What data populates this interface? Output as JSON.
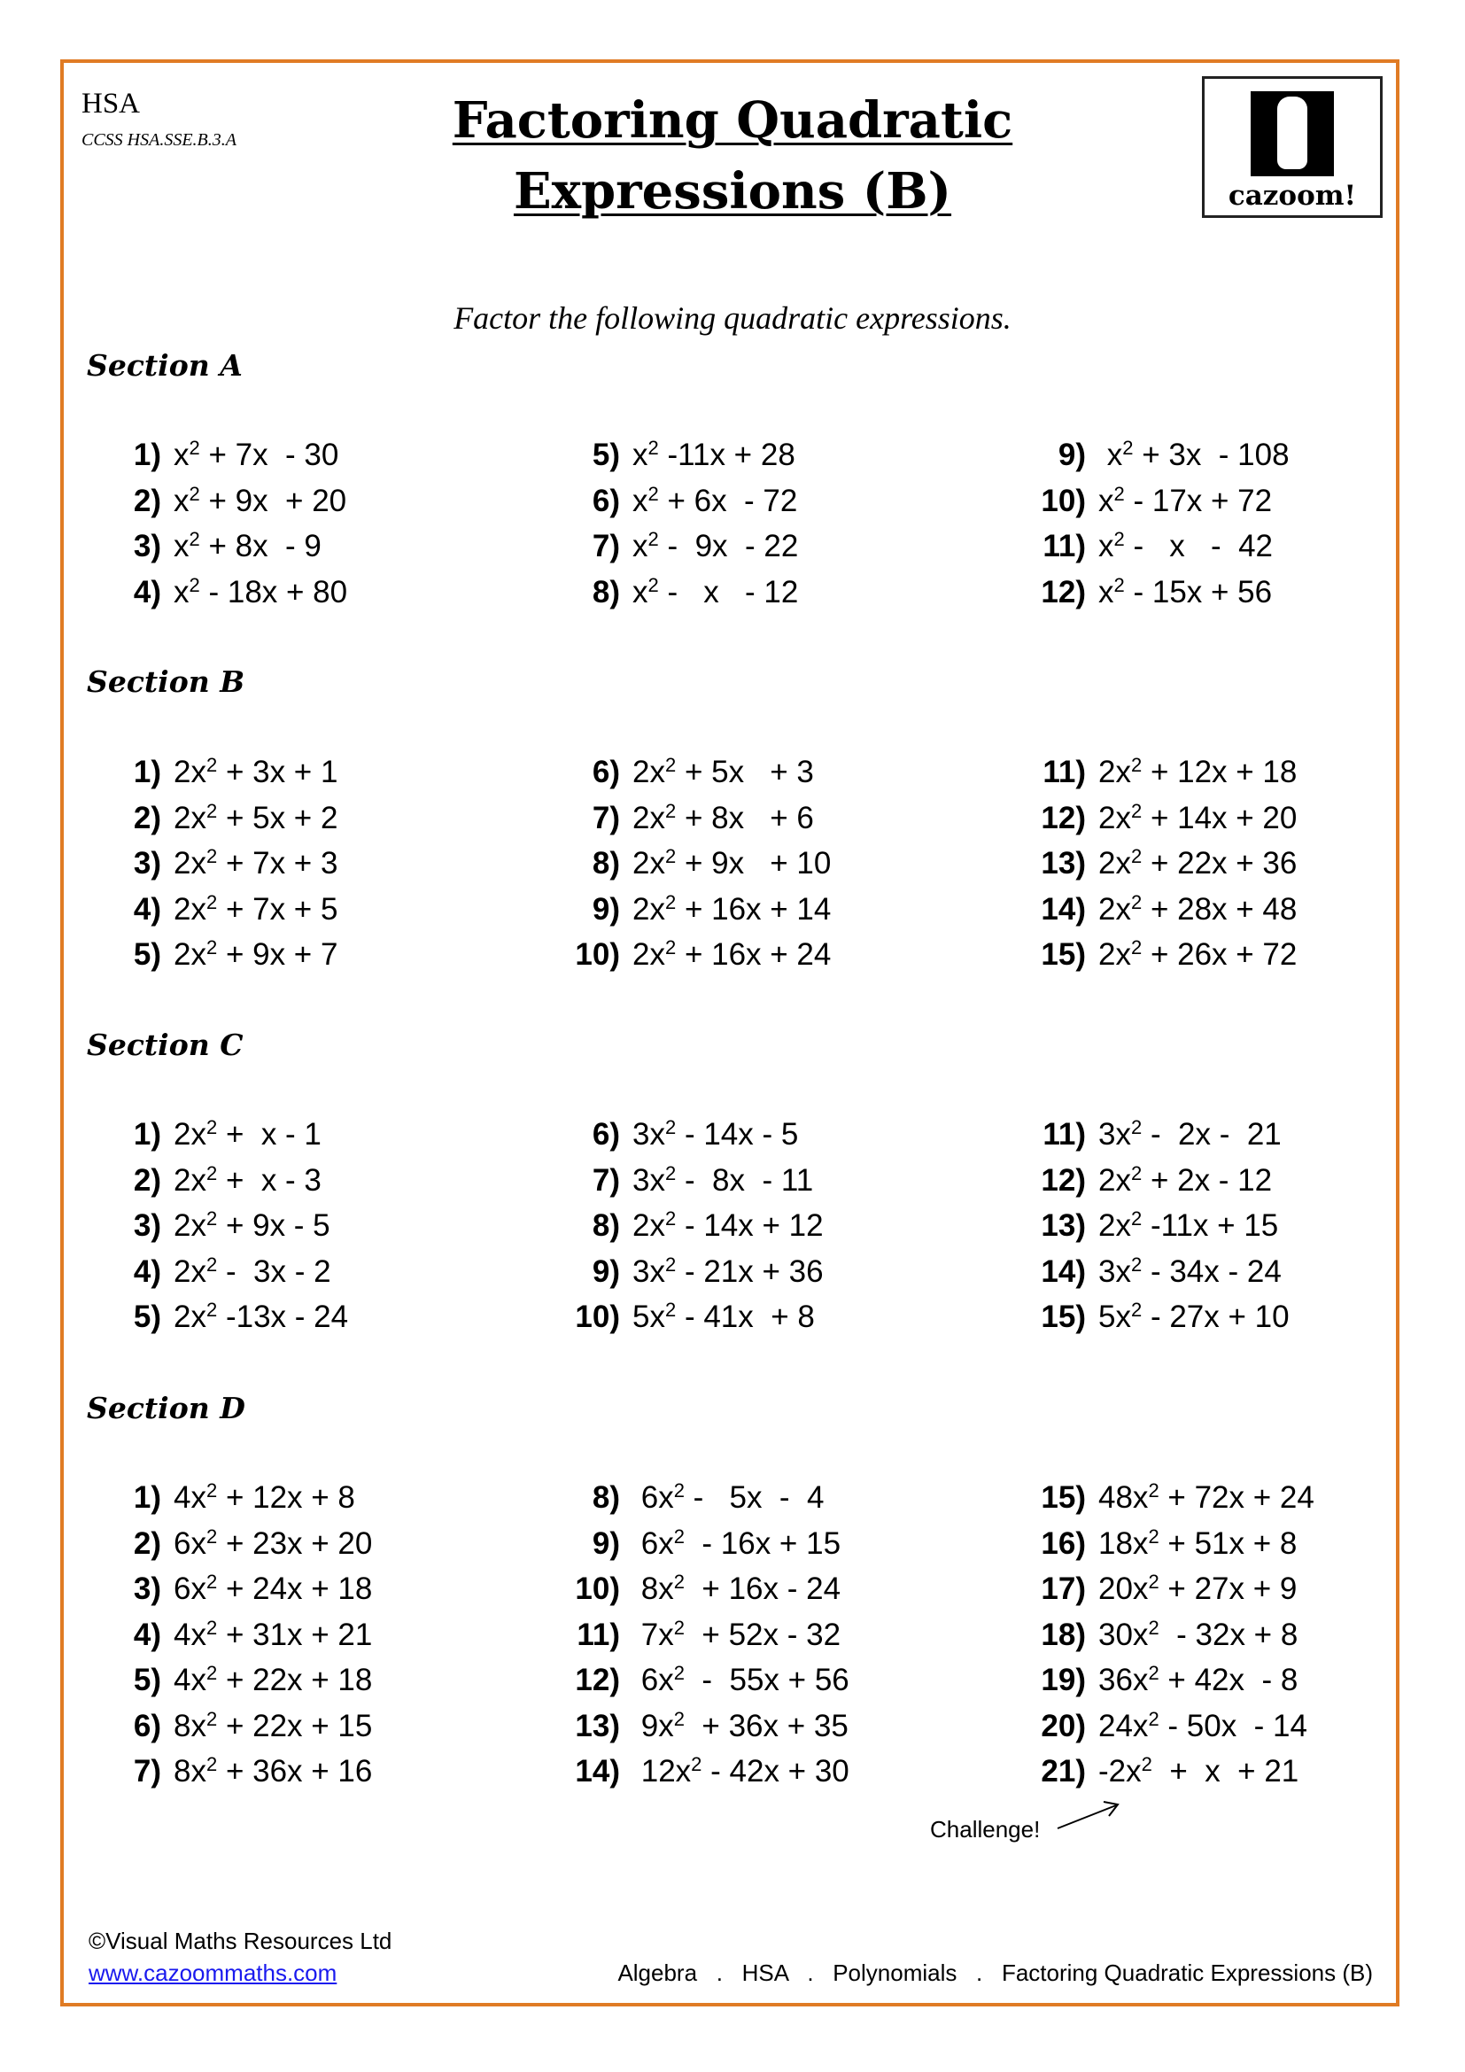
{
  "header": {
    "course": "HSA",
    "standard": "CCSS HSA.SSE.B.3.A",
    "title_line1": "Factoring Quadratic",
    "title_line2": "Expressions (B)",
    "logo_text": "cazoom!"
  },
  "instruction": "Factor the following quadratic expressions.",
  "sections": [
    {
      "label": "Section A",
      "columns": [
        [
          {
            "n": "1)",
            "a": "x",
            "b": " + 7x  - 30"
          },
          {
            "n": "2)",
            "a": "x",
            "b": " + 9x  + 20"
          },
          {
            "n": "3)",
            "a": "x",
            "b": " + 8x  - 9"
          },
          {
            "n": "4)",
            "a": "x",
            "b": " - 18x + 80"
          }
        ],
        [
          {
            "n": "5)",
            "a": "x",
            "b": " -11x + 28"
          },
          {
            "n": "6)",
            "a": "x",
            "b": " + 6x  - 72"
          },
          {
            "n": "7)",
            "a": "x",
            "b": " -  9x  - 22"
          },
          {
            "n": "8)",
            "a": "x",
            "b": " -   x   - 12"
          }
        ],
        [
          {
            "n": "9)",
            "a": " x",
            "b": " + 3x  - 108"
          },
          {
            "n": "10)",
            "a": "x",
            "b": " - 17x + 72"
          },
          {
            "n": "11)",
            "a": "x",
            "b": " -   x   -  42"
          },
          {
            "n": "12)",
            "a": "x",
            "b": " - 15x + 56"
          }
        ]
      ]
    },
    {
      "label": "Section B",
      "columns": [
        [
          {
            "n": "1)",
            "a": "2x",
            "b": " + 3x + 1"
          },
          {
            "n": "2)",
            "a": "2x",
            "b": " + 5x + 2"
          },
          {
            "n": "3)",
            "a": "2x",
            "b": " + 7x + 3"
          },
          {
            "n": "4)",
            "a": "2x",
            "b": " + 7x + 5"
          },
          {
            "n": "5)",
            "a": "2x",
            "b": " + 9x + 7"
          }
        ],
        [
          {
            "n": "6)",
            "a": "2x",
            "b": " + 5x   + 3"
          },
          {
            "n": "7)",
            "a": "2x",
            "b": " + 8x   + 6"
          },
          {
            "n": "8)",
            "a": "2x",
            "b": " + 9x   + 10"
          },
          {
            "n": "9)",
            "a": "2x",
            "b": " + 16x + 14"
          },
          {
            "n": "10)",
            "a": "2x",
            "b": " + 16x + 24"
          }
        ],
        [
          {
            "n": "11)",
            "a": "2x",
            "b": " + 12x + 18"
          },
          {
            "n": "12)",
            "a": "2x",
            "b": " + 14x + 20"
          },
          {
            "n": "13)",
            "a": "2x",
            "b": " + 22x + 36"
          },
          {
            "n": "14)",
            "a": "2x",
            "b": " + 28x + 48"
          },
          {
            "n": "15)",
            "a": "2x",
            "b": " + 26x + 72"
          }
        ]
      ]
    },
    {
      "label": "Section C",
      "columns": [
        [
          {
            "n": "1)",
            "a": "2x",
            "b": " +  x - 1"
          },
          {
            "n": "2)",
            "a": "2x",
            "b": " +  x - 3"
          },
          {
            "n": "3)",
            "a": "2x",
            "b": " + 9x - 5"
          },
          {
            "n": "4)",
            "a": "2x",
            "b": " -  3x - 2"
          },
          {
            "n": "5)",
            "a": "2x",
            "b": " -13x - 24"
          }
        ],
        [
          {
            "n": "6)",
            "a": "3x",
            "b": " - 14x - 5"
          },
          {
            "n": "7)",
            "a": "3x",
            "b": " -  8x  - 11"
          },
          {
            "n": "8)",
            "a": "2x",
            "b": " - 14x + 12"
          },
          {
            "n": "9)",
            "a": "3x",
            "b": " - 21x + 36"
          },
          {
            "n": "10)",
            "a": "5x",
            "b": " - 41x  + 8"
          }
        ],
        [
          {
            "n": "11)",
            "a": "3x",
            "b": " -  2x -  21"
          },
          {
            "n": "12)",
            "a": "2x",
            "b": " + 2x - 12"
          },
          {
            "n": "13)",
            "a": "2x",
            "b": " -11x + 15"
          },
          {
            "n": "14)",
            "a": "3x",
            "b": " - 34x - 24"
          },
          {
            "n": "15)",
            "a": "5x",
            "b": " - 27x + 10"
          }
        ]
      ]
    },
    {
      "label": "Section D",
      "columns": [
        [
          {
            "n": "1)",
            "a": "4x",
            "b": " + 12x + 8"
          },
          {
            "n": "2)",
            "a": "6x",
            "b": " + 23x + 20"
          },
          {
            "n": "3)",
            "a": "6x",
            "b": " + 24x + 18"
          },
          {
            "n": "4)",
            "a": "4x",
            "b": " + 31x + 21"
          },
          {
            "n": "5)",
            "a": "4x",
            "b": " + 22x + 18"
          },
          {
            "n": "6)",
            "a": "8x",
            "b": " + 22x + 15"
          },
          {
            "n": "7)",
            "a": "8x",
            "b": " + 36x + 16"
          }
        ],
        [
          {
            "n": "8)",
            "a": " 6x",
            "b": " -   5x  -  4"
          },
          {
            "n": "9)",
            "a": " 6x",
            "b": "  - 16x + 15"
          },
          {
            "n": "10)",
            "a": " 8x",
            "b": "  + 16x - 24"
          },
          {
            "n": "11)",
            "a": " 7x",
            "b": "  + 52x - 32"
          },
          {
            "n": "12)",
            "a": " 6x",
            "b": "  -  55x + 56"
          },
          {
            "n": "13)",
            "a": " 9x",
            "b": "  + 36x + 35"
          },
          {
            "n": "14)",
            "a": " 12x",
            "b": " - 42x + 30"
          }
        ],
        [
          {
            "n": "15)",
            "a": "48x",
            "b": " + 72x + 24"
          },
          {
            "n": "16)",
            "a": "18x",
            "b": " + 51x + 8"
          },
          {
            "n": "17)",
            "a": "20x",
            "b": " + 27x + 9"
          },
          {
            "n": "18)",
            "a": "30x",
            "b": "  - 32x + 8"
          },
          {
            "n": "19)",
            "a": "36x",
            "b": " + 42x  - 8"
          },
          {
            "n": "20)",
            "a": "24x",
            "b": " - 50x  - 14"
          },
          {
            "n": "21)",
            "a": "-2x",
            "b": "  +  x  + 21"
          }
        ]
      ]
    }
  ],
  "exponent": "2",
  "challenge_label": "Challenge!",
  "footer": {
    "copyright": "©Visual Maths Resources Ltd",
    "url": "www.cazoommaths.com",
    "breadcrumb": "Algebra   .   HSA   .   Polynomials   .   Factoring Quadratic Expressions (B)"
  },
  "colors": {
    "border": "#e07b24",
    "link": "#1a1aee"
  }
}
